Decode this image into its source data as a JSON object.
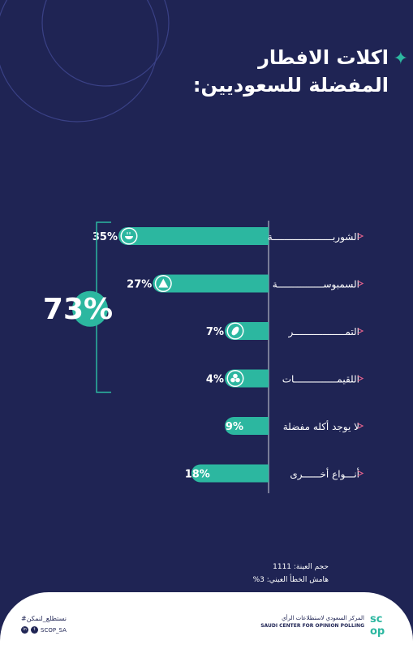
{
  "title_line1": "اكلات الافطار",
  "title_line2": "المفضلة للسعوديين:",
  "chart_data": {
    "type": "bar",
    "orientation": "horizontal",
    "categories": [
      "الشوربـــــــــــــــــــــة",
      "السمبوســــــــــــــــة",
      "التمــــــــــــــــــر",
      "اللقيمـــــــــــــــات",
      "لا يوجد أكله مفضلة",
      "أنـــواع أخــــــرى"
    ],
    "values": [
      35,
      27,
      7,
      4,
      9,
      18
    ],
    "value_labels": [
      "35%",
      "27%",
      "7%",
      "4%",
      "9%",
      "18%"
    ],
    "icons": [
      "soup-bowl-icon",
      "samosa-icon",
      "dates-icon",
      "luqaimat-icon",
      null,
      null
    ],
    "bracket_total_label": "73%",
    "bracket_covers": 4,
    "xlim": [
      0,
      35
    ]
  },
  "notes": {
    "sample_size": "حجم العينة: 1111",
    "margin_of_error": "هامش الخطأ العيني: 3%"
  },
  "footer": {
    "hashtag": "#نستطلع_لنمكن",
    "handle": "SCOP_SA",
    "org_name_ar": "المركز السعودي لاستطلاعات الرأي",
    "org_name_en": "SAUDI CENTER FOR OPINION POLLING",
    "logo_letters": "SCOP"
  },
  "colors": {
    "background": "#1f2454",
    "bar": "#2cb7a0",
    "text": "#ffffff",
    "accent_marker": "#e0608a"
  }
}
